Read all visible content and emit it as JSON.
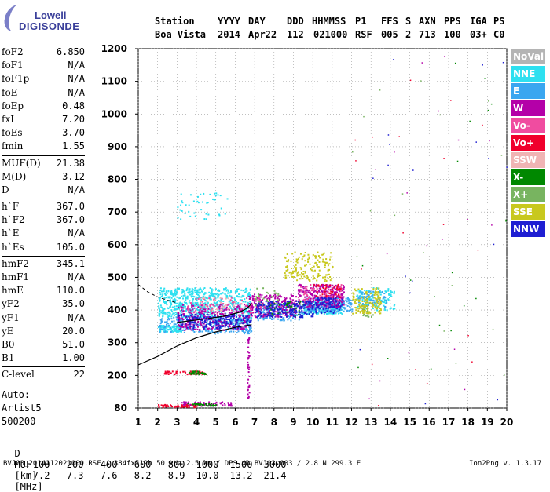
{
  "logo": {
    "top": "Lowell",
    "bottom": "DIGISONDE"
  },
  "header": {
    "labels": [
      "Station",
      "YYYY",
      "DAY",
      "DDD",
      "HHMMSS",
      "P1",
      "FFS",
      "S",
      "AXN",
      "PPS",
      "IGA",
      "PS"
    ],
    "values": [
      "Boa Vista",
      "2014",
      "Apr22",
      "112",
      "021000",
      "RSF",
      "005",
      "2",
      "713",
      "100",
      "03+",
      "C0"
    ]
  },
  "params": [
    {
      "label": "foF2",
      "value": "6.850"
    },
    {
      "label": "foF1",
      "value": "N/A"
    },
    {
      "label": "foF1p",
      "value": "N/A"
    },
    {
      "label": "foE",
      "value": "N/A"
    },
    {
      "label": "foEp",
      "value": "0.48"
    },
    {
      "label": "fxI",
      "value": "7.20"
    },
    {
      "label": "foEs",
      "value": "3.70"
    },
    {
      "label": "fmin",
      "value": "1.55"
    },
    {
      "divider": true
    },
    {
      "label": "MUF(D)",
      "value": "21.38"
    },
    {
      "label": "M(D)",
      "value": "3.12"
    },
    {
      "label": "D",
      "value": "N/A"
    },
    {
      "divider": true
    },
    {
      "label": "h`F",
      "value": "367.0"
    },
    {
      "label": "h`F2",
      "value": "367.0"
    },
    {
      "label": "h`E",
      "value": "N/A"
    },
    {
      "label": "h`Es",
      "value": "105.0"
    },
    {
      "divider": true
    },
    {
      "label": "hmF2",
      "value": "345.1"
    },
    {
      "label": "hmF1",
      "value": "N/A"
    },
    {
      "label": "hmE",
      "value": "110.0"
    },
    {
      "label": "yF2",
      "value": "35.0"
    },
    {
      "label": "yF1",
      "value": "N/A"
    },
    {
      "label": "yE",
      "value": "20.0"
    },
    {
      "label": "B0",
      "value": "51.0"
    },
    {
      "label": "B1",
      "value": "1.00"
    },
    {
      "divider": true
    },
    {
      "label": "C-level",
      "value": "22"
    },
    {
      "divider": true
    }
  ],
  "autoscaling": {
    "line1": "Auto:",
    "line2": "Artist5",
    "line3": "500200"
  },
  "legend": [
    {
      "label": "NoVal",
      "color": "#b4b4b4"
    },
    {
      "label": "NNE",
      "color": "#2ee0f0"
    },
    {
      "label": "E",
      "color": "#3aa6f0"
    },
    {
      "label": "W",
      "color": "#b400a8"
    },
    {
      "label": "Vo-",
      "color": "#f04ca0"
    },
    {
      "label": "Vo+",
      "color": "#f0002c"
    },
    {
      "label": "SSW",
      "color": "#f0b4b4"
    },
    {
      "label": "X-",
      "color": "#008800"
    },
    {
      "label": "X+",
      "color": "#78b460"
    },
    {
      "label": "SSE",
      "color": "#c8c81e"
    },
    {
      "label": "NNW",
      "color": "#1e1ed2"
    }
  ],
  "muf_table": {
    "d_label": "D",
    "d_values": [
      "100",
      "200",
      "400",
      "600",
      "800",
      "1000",
      "1500",
      "3000"
    ],
    "d_unit": "[km]",
    "muf_label": "MUF",
    "muf_values": [
      "7.2",
      "7.3",
      "7.6",
      "8.2",
      "8.9",
      "10.0",
      "13.2",
      "21.4"
    ],
    "muf_unit": "[MHz]"
  },
  "footer": "BVJ03_2014112021000.RSF / 384fx512h 50 kHz 2.5 km / DPS-4D BVJ03 003 / 2.8 N 299.3 E",
  "version": "Ion2Png v. 1.3.17",
  "chart_data": {
    "type": "scatter",
    "x_ticks": [
      1,
      2,
      3,
      4,
      5,
      6,
      7,
      8,
      9,
      10,
      11,
      12,
      13,
      14,
      15,
      16,
      17,
      18,
      19,
      20
    ],
    "y_ticks": [
      80,
      200,
      300,
      400,
      500,
      600,
      700,
      800,
      900,
      1000,
      1100,
      1200
    ],
    "xlim": [
      1,
      20
    ],
    "ylim": [
      80,
      1200
    ],
    "grid": "dotted",
    "series": [
      {
        "name": "NNE",
        "color": "#2ee0f0",
        "clusters": [
          {
            "x": [
              2.0,
              5.0
            ],
            "y": [
              380,
              470
            ],
            "n": 450
          },
          {
            "x": [
              5.0,
              6.8
            ],
            "y": [
              360,
              470
            ],
            "n": 250
          },
          {
            "x": [
              9.5,
              11.5
            ],
            "y": [
              390,
              430
            ],
            "n": 220
          },
          {
            "x": [
              12.2,
              14.2
            ],
            "y": [
              400,
              470
            ],
            "n": 120
          },
          {
            "x": [
              3.0,
              5.6
            ],
            "y": [
              680,
              760
            ],
            "n": 45
          },
          {
            "x": [
              2.0,
              3.2
            ],
            "y": [
              335,
              355
            ],
            "n": 90
          }
        ]
      },
      {
        "name": "E",
        "color": "#3aa6f0",
        "clusters": [
          {
            "x": [
              2.0,
              6.8
            ],
            "y": [
              330,
              380
            ],
            "n": 250
          },
          {
            "x": [
              7.0,
              9.5
            ],
            "y": [
              370,
              420
            ],
            "n": 160
          },
          {
            "x": [
              9.5,
              12.0
            ],
            "y": [
              395,
              440
            ],
            "n": 220
          },
          {
            "x": [
              12.3,
              13.8
            ],
            "y": [
              410,
              460
            ],
            "n": 60
          }
        ]
      },
      {
        "name": "W",
        "color": "#b400a8",
        "clusters": [
          {
            "x": [
              3.0,
              6.6
            ],
            "y": [
              340,
              420
            ],
            "n": 300
          },
          {
            "x": [
              6.6,
              9.2
            ],
            "y": [
              380,
              450
            ],
            "n": 220
          },
          {
            "x": [
              9.2,
              11.6
            ],
            "y": [
              410,
              480
            ],
            "n": 300
          },
          {
            "x": [
              3.2,
              5.8
            ],
            "y": [
              90,
              105
            ],
            "n": 80
          },
          {
            "x": [
              6.6,
              6.7
            ],
            "y": [
              110,
              320
            ],
            "n": 40
          }
        ]
      },
      {
        "name": "Vo-",
        "color": "#f04ca0",
        "clusters": [
          {
            "x": [
              3.5,
              7.5
            ],
            "y": [
              390,
              440
            ],
            "n": 80
          },
          {
            "x": [
              9.0,
              11.5
            ],
            "y": [
              430,
              480
            ],
            "n": 60
          }
        ]
      },
      {
        "name": "Vo+",
        "color": "#f0002c",
        "clusters": [
          {
            "x": [
              2.3,
              4.5
            ],
            "y": [
              205,
              215
            ],
            "n": 60
          },
          {
            "x": [
              2.0,
              4.0
            ],
            "y": [
              85,
              95
            ],
            "n": 50
          },
          {
            "x": [
              10.0,
              11.5
            ],
            "y": [
              440,
              480
            ],
            "n": 40
          }
        ]
      },
      {
        "name": "SSW",
        "color": "#f0b4b4",
        "clusters": [
          {
            "x": [
              4.0,
              6.5
            ],
            "y": [
              400,
              440
            ],
            "n": 30
          }
        ]
      },
      {
        "name": "X-",
        "color": "#008800",
        "clusters": [
          {
            "x": [
              3.6,
              4.5
            ],
            "y": [
              205,
              215
            ],
            "n": 30
          },
          {
            "x": [
              3.5,
              5.0
            ],
            "y": [
              90,
              100
            ],
            "n": 30
          },
          {
            "x": [
              7.5,
              9.5
            ],
            "y": [
              380,
              430
            ],
            "n": 40
          }
        ]
      },
      {
        "name": "X+",
        "color": "#78b460",
        "clusters": [
          {
            "x": [
              7.0,
              8.2
            ],
            "y": [
              410,
              470
            ],
            "n": 30
          },
          {
            "x": [
              12.5,
              13.3
            ],
            "y": [
              380,
              440
            ],
            "n": 30
          }
        ]
      },
      {
        "name": "SSE",
        "color": "#c8c81e",
        "clusters": [
          {
            "x": [
              8.5,
              11.0
            ],
            "y": [
              490,
              580
            ],
            "n": 160
          },
          {
            "x": [
              12.0,
              13.5
            ],
            "y": [
              390,
              470
            ],
            "n": 130
          }
        ]
      },
      {
        "name": "NNW",
        "color": "#1e1ed2",
        "clusters": [
          {
            "x": [
              3.0,
              6.8
            ],
            "y": [
              345,
              390
            ],
            "n": 180
          },
          {
            "x": [
              7.0,
              10.2
            ],
            "y": [
              380,
              430
            ],
            "n": 200
          },
          {
            "x": [
              10.2,
              11.5
            ],
            "y": [
              390,
              440
            ],
            "n": 80
          }
        ]
      }
    ],
    "profile": {
      "solid_lower": [
        [
          1,
          232
        ],
        [
          2,
          258
        ],
        [
          3,
          290
        ],
        [
          4,
          315
        ],
        [
          5,
          333
        ],
        [
          6,
          347
        ],
        [
          6.85,
          355
        ]
      ],
      "solid_upper": [
        [
          3.0,
          362
        ],
        [
          3.8,
          368
        ],
        [
          4.5,
          373
        ],
        [
          5.5,
          382
        ],
        [
          6.2,
          393
        ],
        [
          6.6,
          405
        ],
        [
          6.85,
          420
        ]
      ],
      "dashed": [
        [
          1,
          478
        ],
        [
          1.5,
          455
        ],
        [
          2.0,
          440
        ],
        [
          2.5,
          430
        ],
        [
          3.0,
          422
        ]
      ]
    }
  }
}
